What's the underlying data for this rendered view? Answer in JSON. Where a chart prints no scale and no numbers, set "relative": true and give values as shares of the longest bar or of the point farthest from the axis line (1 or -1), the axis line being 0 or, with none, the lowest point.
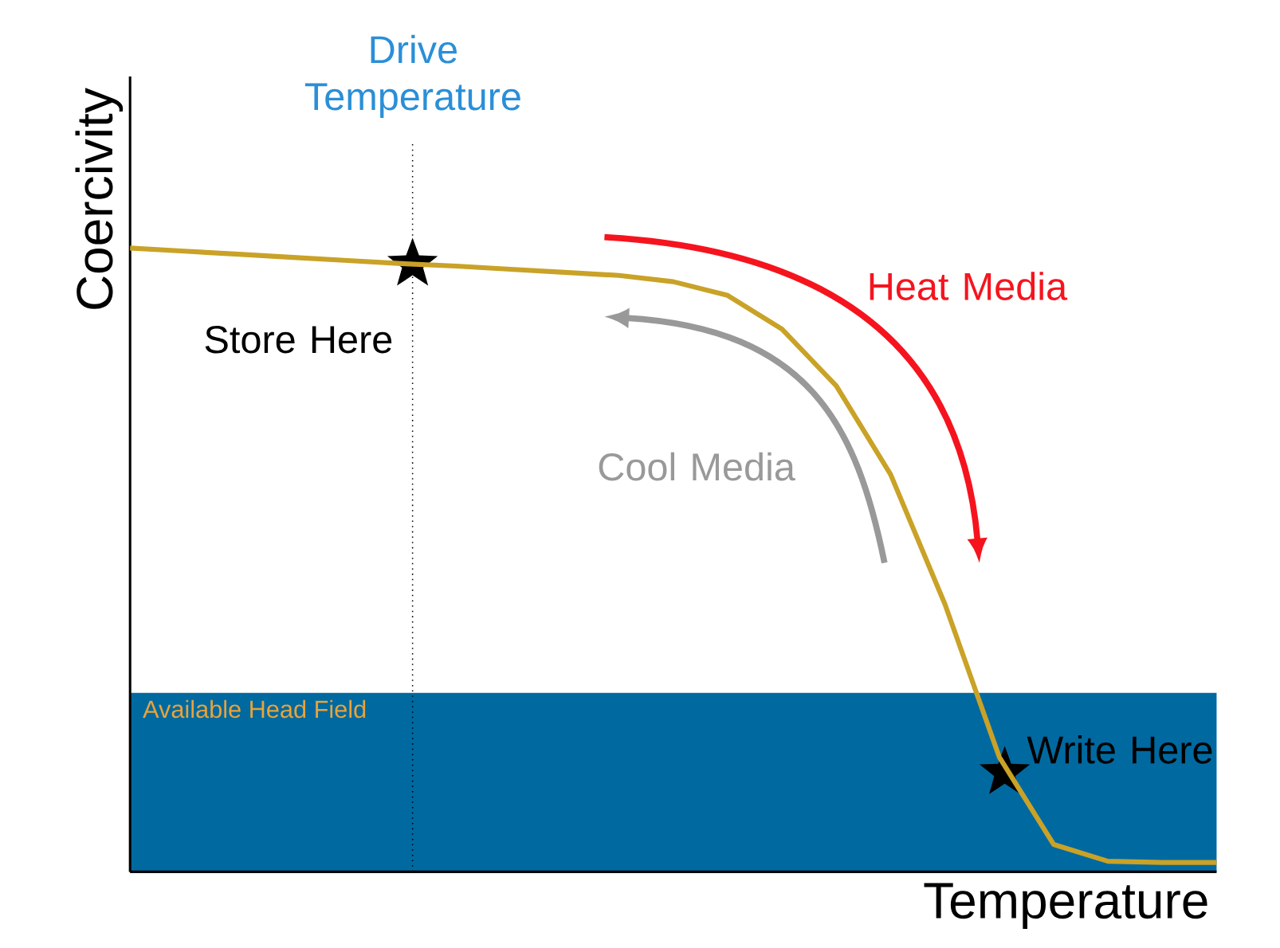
{
  "chart_data": {
    "type": "line",
    "relative": true,
    "xlabel": "Temperature",
    "ylabel": "Coercivity",
    "categories": [
      null,
      null,
      null,
      null,
      null,
      null,
      null,
      null,
      null,
      null,
      null,
      null,
      null,
      null,
      null,
      null,
      null,
      null,
      null,
      null,
      null
    ],
    "series": [
      {
        "color": "#c9a227",
        "values": [
          1,
          0.995,
          0.99,
          0.985,
          0.98,
          0.975,
          0.971,
          0.966,
          0.961,
          0.956,
          0.946,
          0.924,
          0.87,
          0.779,
          0.637,
          0.429,
          0.184,
          0.044,
          0.017,
          0.015,
          0.015
        ]
      }
    ],
    "bands": [
      {
        "axis": "y",
        "from": 0,
        "to": 0.287,
        "label": "Available Head Field",
        "color": "#0069a0"
      }
    ],
    "annotations": [
      "Store Here",
      "Heat Media",
      "Cool Media",
      "Write Here",
      "Drive Temperature"
    ]
  }
}
